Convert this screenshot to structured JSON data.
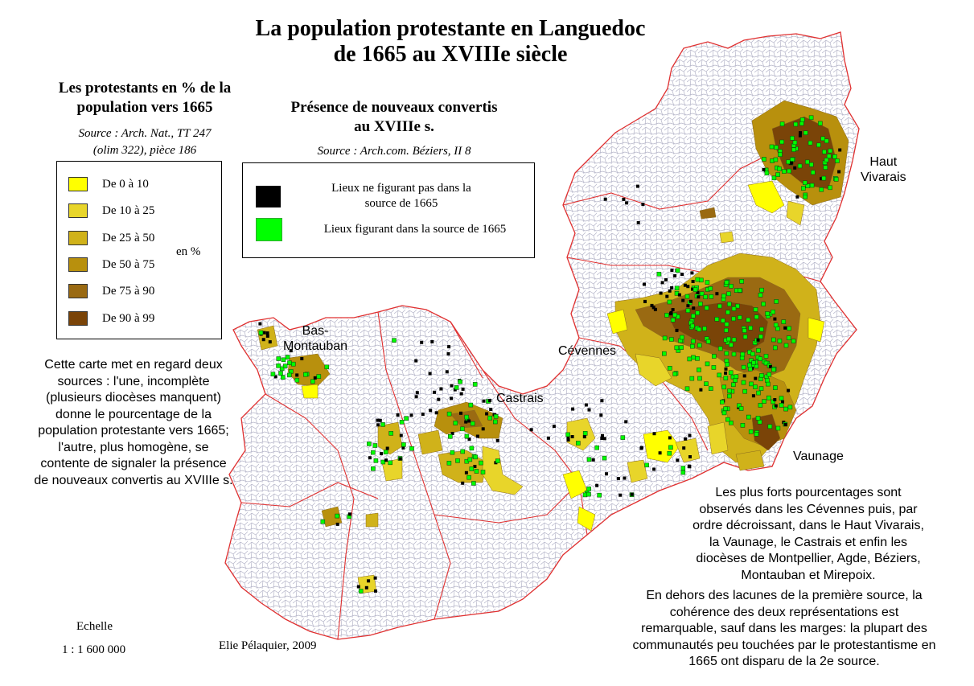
{
  "title_line1": "La population protestante en Languedoc",
  "title_line2": "de 1665 au XVIIIe siècle",
  "legend_percent": {
    "title_line1": "Les protestants en % de la",
    "title_line2": "population vers 1665",
    "source_line1": "Source : Arch. Nat., TT 247",
    "source_line2": "(olim 322), pièce 186",
    "unit": "en %",
    "classes": [
      {
        "label": "De 0 à 10",
        "color": "#ffff00"
      },
      {
        "label": "De 10 à 25",
        "color": "#e8d52a"
      },
      {
        "label": "De 25 à 50",
        "color": "#d0b21a"
      },
      {
        "label": "De 50 à 75",
        "color": "#b8900d"
      },
      {
        "label": "De 75 à 90",
        "color": "#9a6a12"
      },
      {
        "label": "De 90 à 99",
        "color": "#7a4408"
      }
    ]
  },
  "legend_converts": {
    "title_line1": "Présence de nouveaux convertis",
    "title_line2": "au XVIIIe s.",
    "source": "Source : Arch.com. Béziers, II 8",
    "items": [
      {
        "label_line1": "Lieux ne figurant pas dans la",
        "label_line2": "source de 1665",
        "color": "#000000"
      },
      {
        "label_line1": "Lieux figurant dans la source de 1665",
        "label_line2": "",
        "color": "#00ff00"
      }
    ]
  },
  "note_left": [
    "Cette carte met en regard deux",
    "sources : l'une, incomplète",
    "(plusieurs diocèses manquent)",
    "donne le pourcentage de la",
    "population protestante vers 1665;",
    "l'autre, plus homogène, se",
    "contente de signaler la présence",
    "de nouveaux convertis au XVIIIe s."
  ],
  "note_right_1": [
    "Les plus forts pourcentages sont",
    "observés dans les Cévennes puis, par",
    "ordre décroissant, dans le Haut Vivarais,",
    "la Vaunage, le Castrais et enfin les",
    "diocèses de Montpellier, Agde, Béziers,",
    "Montauban et Mirepoix."
  ],
  "note_right_2": [
    "En dehors des lacunes de la première source, la",
    "cohérence des deux représentations est",
    "remarquable, sauf dans les marges: la plupart des",
    "communautés peu touchées par le protestantisme en",
    "1665 ont disparu de la 2e source."
  ],
  "regions": {
    "haut_vivarais_1": "Haut",
    "haut_vivarais_2": "Vivarais",
    "bas_montauban_1": "Bas-",
    "bas_montauban_2": "Montauban",
    "cevennes": "Cévennes",
    "castrais": "Castrais",
    "vaunage": "Vaunage"
  },
  "scale_label": "Echelle",
  "scale_value": "1 : 1 600 000",
  "author": "Elie Pélaquier, 2009",
  "colors": {
    "commune_border": "#b4b4c8",
    "diocese_border": "#e03030",
    "map_fill": "#ffffff"
  }
}
